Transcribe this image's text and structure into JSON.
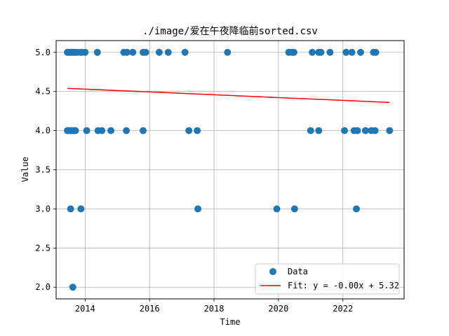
{
  "chart_data": {
    "type": "scatter",
    "title": "./image/爱在午夜降临前sorted.csv",
    "xlabel": "Time",
    "ylabel": "Value",
    "xlim": [
      2013.1,
      2023.9
    ],
    "ylim": [
      1.85,
      5.15
    ],
    "grid": true,
    "legend_position": "lower-right",
    "x_ticks": [
      {
        "value": 2014,
        "label": "2014"
      },
      {
        "value": 2016,
        "label": "2016"
      },
      {
        "value": 2018,
        "label": "2018"
      },
      {
        "value": 2020,
        "label": "2020"
      },
      {
        "value": 2022,
        "label": "2022"
      }
    ],
    "y_ticks": [
      {
        "value": 2.0,
        "label": "2.0"
      },
      {
        "value": 2.5,
        "label": "2.5"
      },
      {
        "value": 3.0,
        "label": "3.0"
      },
      {
        "value": 3.5,
        "label": "3.5"
      },
      {
        "value": 4.0,
        "label": "4.0"
      },
      {
        "value": 4.5,
        "label": "4.5"
      },
      {
        "value": 5.0,
        "label": "5.0"
      }
    ],
    "series": [
      {
        "name": "Data",
        "kind": "scatter",
        "color": "#1f77b4",
        "points": [
          [
            2013.45,
            5
          ],
          [
            2013.5,
            5
          ],
          [
            2013.55,
            5
          ],
          [
            2013.6,
            5
          ],
          [
            2013.65,
            5
          ],
          [
            2013.7,
            5
          ],
          [
            2013.75,
            5
          ],
          [
            2013.85,
            5
          ],
          [
            2013.9,
            5
          ],
          [
            2014.0,
            5
          ],
          [
            2014.38,
            5
          ],
          [
            2015.2,
            5
          ],
          [
            2015.3,
            5
          ],
          [
            2015.48,
            5
          ],
          [
            2015.8,
            5
          ],
          [
            2015.88,
            5
          ],
          [
            2016.3,
            5
          ],
          [
            2016.58,
            5
          ],
          [
            2017.1,
            5
          ],
          [
            2018.42,
            5
          ],
          [
            2020.32,
            5
          ],
          [
            2020.42,
            5
          ],
          [
            2020.48,
            5
          ],
          [
            2021.05,
            5
          ],
          [
            2021.25,
            5
          ],
          [
            2021.32,
            5
          ],
          [
            2021.6,
            5
          ],
          [
            2022.1,
            5
          ],
          [
            2022.28,
            5
          ],
          [
            2022.55,
            5
          ],
          [
            2022.95,
            5
          ],
          [
            2023.02,
            5
          ],
          [
            2013.45,
            4
          ],
          [
            2013.5,
            4
          ],
          [
            2013.55,
            4
          ],
          [
            2013.6,
            4
          ],
          [
            2013.65,
            4
          ],
          [
            2013.7,
            4
          ],
          [
            2014.05,
            4
          ],
          [
            2014.4,
            4
          ],
          [
            2014.52,
            4
          ],
          [
            2014.8,
            4
          ],
          [
            2015.28,
            4
          ],
          [
            2015.8,
            4
          ],
          [
            2017.22,
            4
          ],
          [
            2017.48,
            4
          ],
          [
            2021.0,
            4
          ],
          [
            2021.25,
            4
          ],
          [
            2022.05,
            4
          ],
          [
            2022.35,
            4
          ],
          [
            2022.45,
            4
          ],
          [
            2022.7,
            4
          ],
          [
            2022.88,
            4
          ],
          [
            2023.0,
            4
          ],
          [
            2023.45,
            4
          ],
          [
            2013.55,
            3
          ],
          [
            2013.87,
            3
          ],
          [
            2017.5,
            3
          ],
          [
            2019.95,
            3
          ],
          [
            2020.5,
            3
          ],
          [
            2022.42,
            3
          ],
          [
            2013.62,
            2
          ]
        ]
      },
      {
        "name": "Fit: y = -0.00x + 5.32",
        "kind": "line",
        "color": "#ff0000",
        "points": [
          [
            2013.45,
            4.54
          ],
          [
            2023.45,
            4.36
          ]
        ]
      }
    ]
  }
}
